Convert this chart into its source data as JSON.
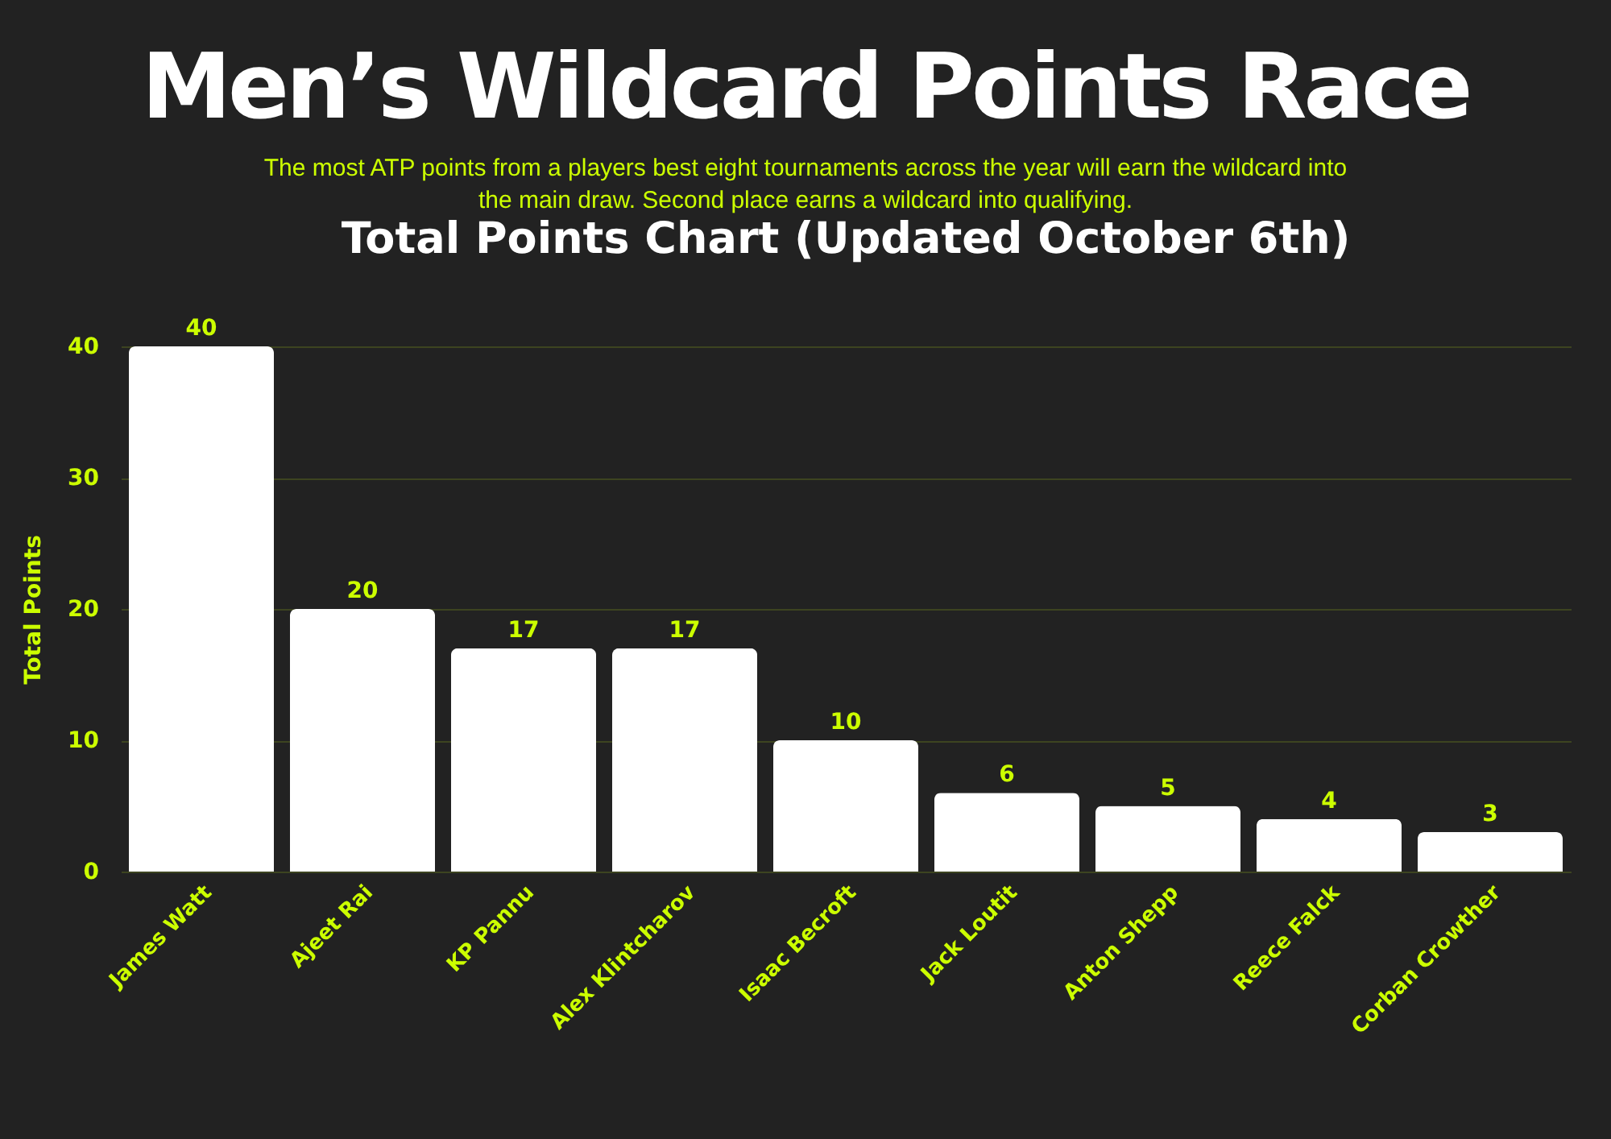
{
  "chart_data": {
    "type": "bar",
    "title": "Men’s Wildcard Points Race",
    "subtitle": "The most ATP points from a players best eight tournaments across the year will earn the wildcard into the main draw. Second place earns a wildcard into qualifying.",
    "annotations": [
      "Total Points Chart (Updated October 6th)"
    ],
    "ylabel": "Total Points",
    "categories": [
      "James Watt",
      "Ajeet Rai",
      "KP Pannu",
      "Alex Klintcharov",
      "Isaac Becroft",
      "Jack Loutit",
      "Anton Shepp",
      "Reece Falck",
      "Corban Crowther"
    ],
    "values": [
      40,
      20,
      17,
      17,
      10,
      6,
      5,
      4,
      3
    ],
    "color": "#ffffff",
    "ylim": [
      0,
      40
    ],
    "yticks": [
      0,
      10,
      20,
      30,
      40
    ],
    "grid": "y",
    "data_labels": true,
    "legend": false
  }
}
